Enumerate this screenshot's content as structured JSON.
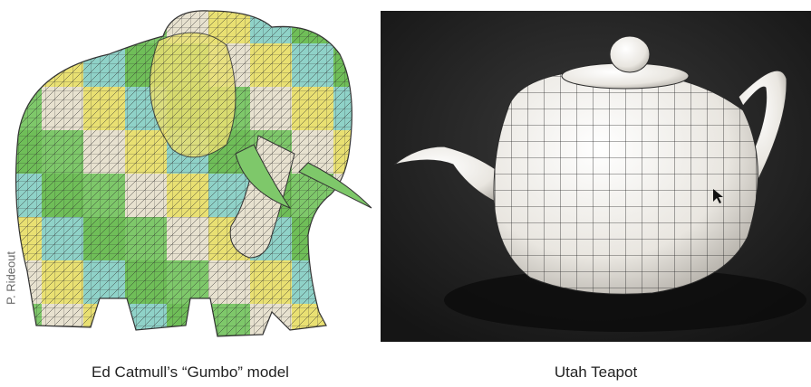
{
  "figure": {
    "left": {
      "caption": "Ed Catmull’s “Gumbo” model",
      "credit": "P. Rideout",
      "patch_colors": [
        "#e9e072",
        "#7ec86a",
        "#8fd2c8",
        "#e7e1cf",
        "#6fbe58"
      ],
      "wire_color": "#2e2e2e"
    },
    "right": {
      "caption": "Utah Teapot",
      "background_color": "#1d1d1d",
      "teapot_color": "#f4f2ee",
      "grid_color": "#2b2b2b"
    }
  }
}
